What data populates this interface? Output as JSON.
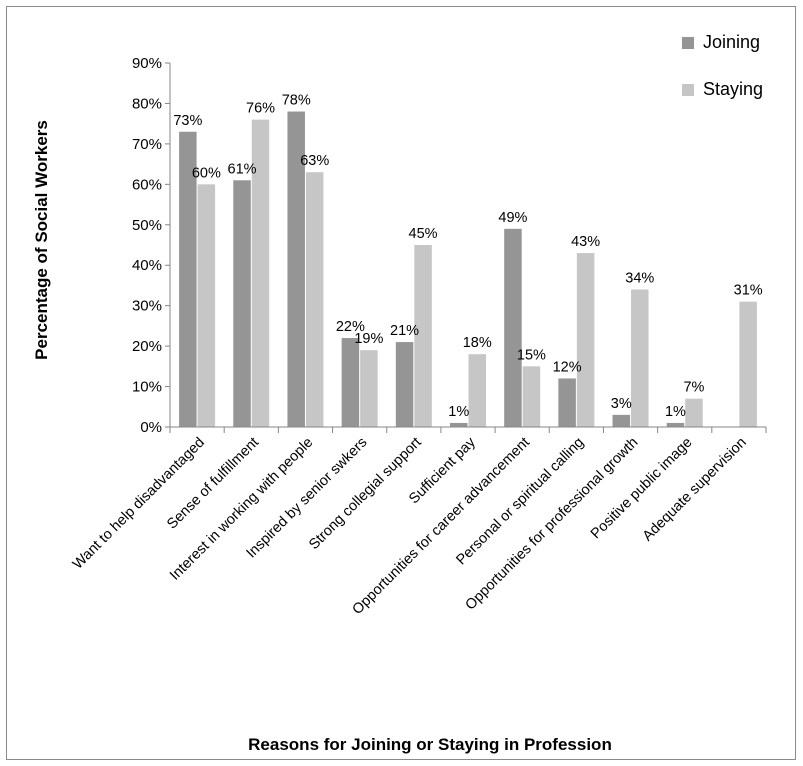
{
  "chart_data": {
    "type": "bar",
    "title": "",
    "xlabel": "Reasons for Joining or Staying in Profession",
    "ylabel": "Percentage of Social Workers",
    "ylim": [
      0,
      90
    ],
    "y_ticks": [
      "0%",
      "10%",
      "20%",
      "30%",
      "40%",
      "50%",
      "60%",
      "70%",
      "80%",
      "90%"
    ],
    "legend_position": "top-right",
    "grid": false,
    "categories": [
      "Want to help disadvantaged",
      "Sense of fulfillment",
      "Interest in working with people",
      "Inspired by senior swkers",
      "Strong collegial support",
      "Sufficient pay",
      "Opportunities for career advancement",
      "Personal or spiritual calling",
      "Opportunities for professional growth",
      "Positive public image",
      "Adequate supervision"
    ],
    "series": [
      {
        "name": "Joining",
        "color": "#959595",
        "values": [
          73,
          61,
          78,
          22,
          21,
          1,
          49,
          12,
          3,
          1,
          null
        ],
        "labels": [
          "73%",
          "61%",
          "78%",
          "22%",
          "21%",
          "1%",
          "49%",
          "12%",
          "3%",
          "1%",
          null
        ]
      },
      {
        "name": "Staying",
        "color": "#c6c6c6",
        "values": [
          60,
          76,
          63,
          19,
          45,
          18,
          15,
          43,
          34,
          7,
          31
        ],
        "labels": [
          "60%",
          "76%",
          "63%",
          "19%",
          "45%",
          "18%",
          "15%",
          "43%",
          "34%",
          "7%",
          "31%"
        ]
      }
    ]
  }
}
